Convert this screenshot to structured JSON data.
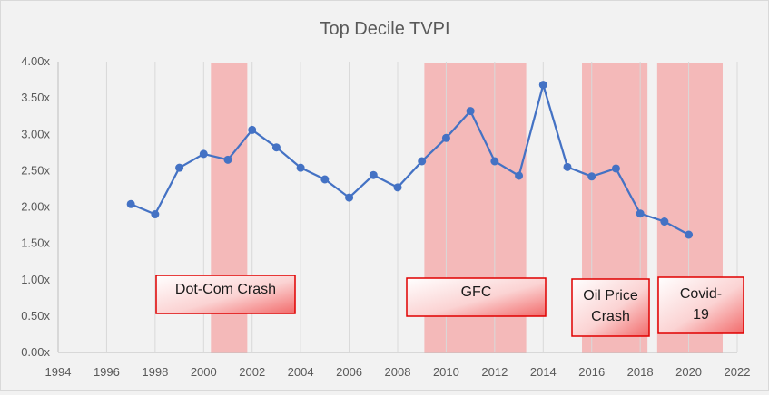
{
  "chart_data": {
    "type": "line",
    "title": "Top Decile TVPI",
    "xlabel": "",
    "ylabel": "",
    "xlim": [
      1994,
      2022
    ],
    "ylim": [
      0,
      4
    ],
    "x_ticks": [
      "1994",
      "1996",
      "1998",
      "2000",
      "2002",
      "2004",
      "2006",
      "2008",
      "2010",
      "2012",
      "2014",
      "2016",
      "2018",
      "2020",
      "2022"
    ],
    "y_ticks": [
      "0.00x",
      "0.50x",
      "1.00x",
      "1.50x",
      "2.00x",
      "2.50x",
      "3.00x",
      "3.50x",
      "4.00x"
    ],
    "grid": "vertical",
    "series": [
      {
        "x": [
          1997,
          1998,
          1999,
          2000,
          2001,
          2002,
          2003,
          2004,
          2005,
          2006,
          2007,
          2008,
          2009,
          2010,
          2011,
          2012,
          2013,
          2014,
          2015,
          2016,
          2017,
          2018,
          2019,
          2020
        ],
        "values": [
          2.04,
          1.9,
          2.54,
          2.73,
          2.65,
          3.06,
          2.82,
          2.54,
          2.38,
          2.13,
          2.44,
          2.27,
          2.63,
          2.95,
          3.32,
          2.63,
          2.43,
          3.68,
          2.55,
          2.42,
          2.53,
          1.91,
          1.8,
          1.62
        ],
        "color": "#4472c4"
      }
    ],
    "shaded_periods": [
      {
        "label": "Dot-Com Crash",
        "start": 2000.3,
        "end": 2001.8
      },
      {
        "label": "GFC",
        "start": 2009.1,
        "end": 2013.3
      },
      {
        "label": "Oil Price\nCrash",
        "start": 2015.6,
        "end": 2018.3
      },
      {
        "label": "Covid-\n19",
        "start": 2018.7,
        "end": 2021.4
      }
    ],
    "colors": {
      "line": "#4472c4",
      "shade": "#f4b9b9",
      "label_border": "#e00000",
      "grid": "#d9d9d9"
    }
  }
}
